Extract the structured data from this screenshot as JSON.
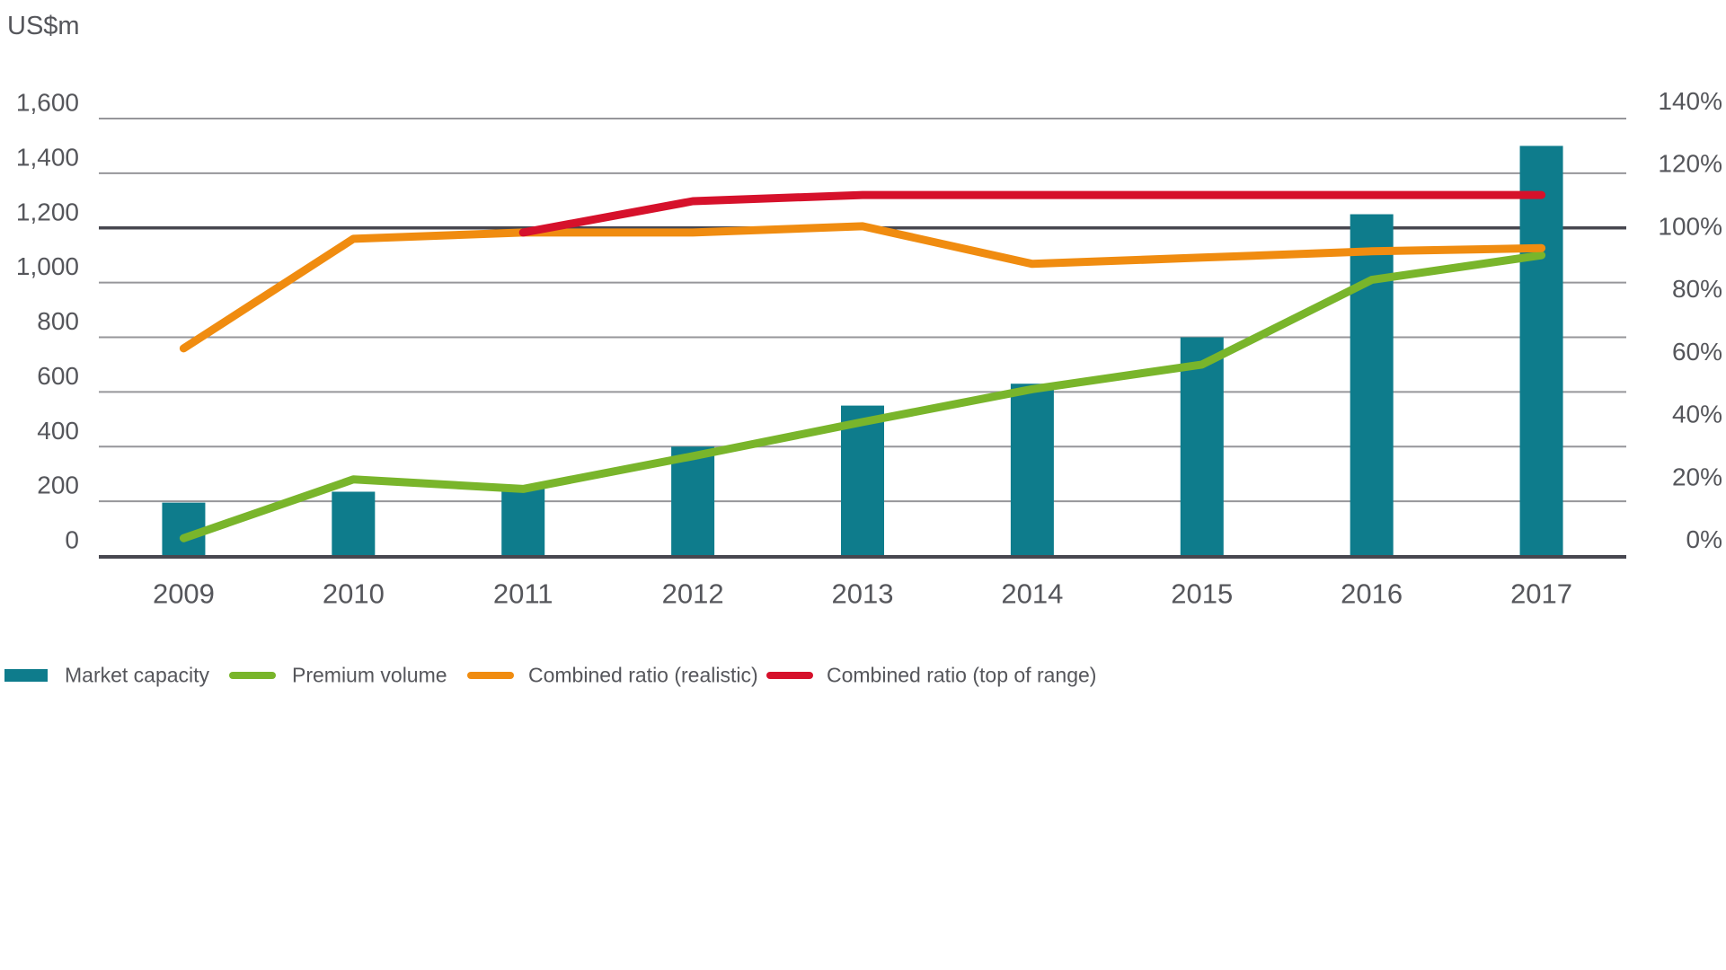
{
  "page": {
    "background": "#ffffff",
    "text_color": "#55565b",
    "gridline_color": "#96969a",
    "gridline_dark_color": "#47474f"
  },
  "chart_data": {
    "type": "combo-bar-line",
    "left_axis_title": "US$m",
    "categories": [
      "2009",
      "2010",
      "2011",
      "2012",
      "2013",
      "2014",
      "2015",
      "2016",
      "2017"
    ],
    "left_axis": {
      "min": 0,
      "max": 1600,
      "step": 200,
      "tick_labels": [
        "0",
        "200",
        "400",
        "600",
        "800",
        "1,000",
        "1,200",
        "1,400",
        "1,600"
      ],
      "emphasized_values": [
        0,
        1200
      ]
    },
    "right_axis": {
      "min": 0,
      "max": 140,
      "step": 20,
      "tick_labels": [
        "0%",
        "20%",
        "40%",
        "60%",
        "80%",
        "100%",
        "120%",
        "140%"
      ]
    },
    "grid": true,
    "legend_position": "bottom-left",
    "series": [
      {
        "name": "Market capacity",
        "type": "bar",
        "axis": "left",
        "color": "#0e7c8c",
        "values": [
          195,
          235,
          250,
          400,
          550,
          630,
          800,
          1250,
          1500
        ]
      },
      {
        "name": "Premium volume",
        "type": "line",
        "axis": "left",
        "color": "#79b52b",
        "values": [
          65,
          280,
          245,
          365,
          490,
          610,
          700,
          1010,
          1100
        ]
      },
      {
        "name": "Combined ratio (realistic)",
        "type": "line",
        "axis": "right",
        "unit": "%",
        "values": [
          61,
          96,
          98,
          98,
          100,
          88,
          90,
          92,
          93
        ],
        "color": "#f08c10"
      },
      {
        "name": "Combined ratio (top of range)",
        "type": "line",
        "axis": "right",
        "unit": "%",
        "values": [
          null,
          null,
          98,
          108,
          110,
          110,
          110,
          110,
          110
        ],
        "color": "#d6112b"
      }
    ]
  }
}
